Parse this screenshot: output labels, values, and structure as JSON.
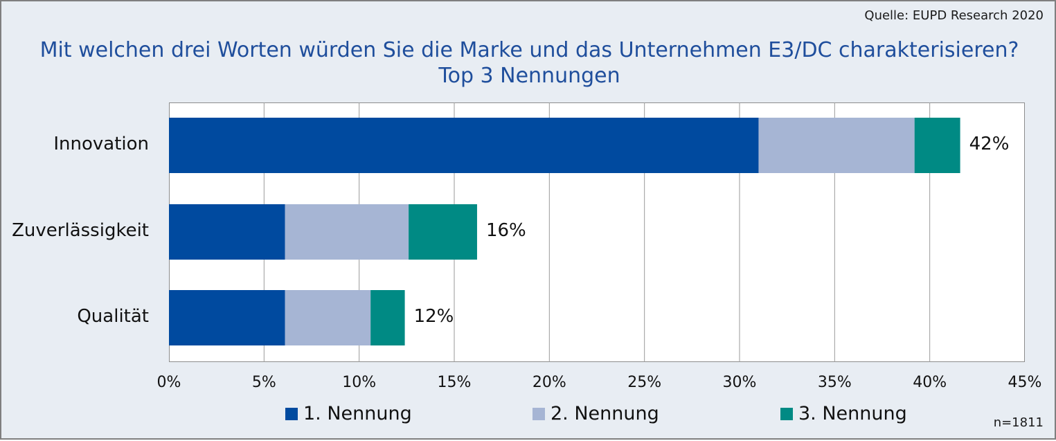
{
  "source": "Quelle: EUPD Research 2020",
  "note": "n=1811",
  "chart_data": {
    "type": "bar",
    "orientation": "horizontal",
    "stacked": true,
    "title": "Mit welchen drei Worten würden Sie die Marke und das Unternehmen E3/DC charakterisieren?",
    "subtitle": "Top 3 Nennungen",
    "categories": [
      "Innovation",
      "Zuverlässigkeit",
      "Qualität"
    ],
    "series": [
      {
        "name": "1. Nennung",
        "color": "#004a9f",
        "values": [
          31.0,
          6.1,
          6.1
        ]
      },
      {
        "name": "2. Nennung",
        "color": "#a6b5d4",
        "values": [
          8.2,
          6.5,
          4.5
        ]
      },
      {
        "name": "3. Nennung",
        "color": "#008a84",
        "values": [
          2.4,
          3.6,
          1.8
        ]
      }
    ],
    "totals": [
      "42%",
      "16%",
      "12%"
    ],
    "xlim": [
      0,
      45
    ],
    "xticks": [
      "0%",
      "5%",
      "10%",
      "15%",
      "20%",
      "25%",
      "30%",
      "35%",
      "40%",
      "45%"
    ],
    "grid": true,
    "legend": "bottom"
  }
}
